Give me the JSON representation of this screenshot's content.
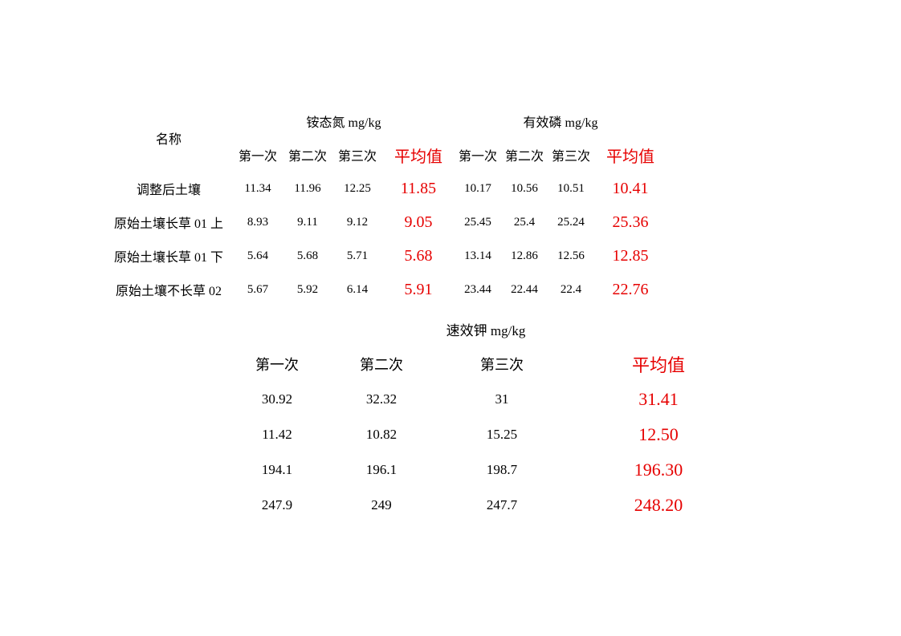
{
  "table1": {
    "name_header": "名称",
    "group_a": "铵态氮 mg/kg",
    "group_b": "有效磷 mg/kg",
    "sub1": "第一次",
    "sub2": "第二次",
    "sub3": "第三次",
    "avg_label": "平均值",
    "rows": [
      {
        "name": "调整后土壤",
        "a1": "11.34",
        "a2": "11.96",
        "a3": "12.25",
        "aavg": "11.85",
        "b1": "10.17",
        "b2": "10.56",
        "b3": "10.51",
        "bavg": "10.41"
      },
      {
        "name": "原始土壤长草 01 上",
        "a1": "8.93",
        "a2": "9.11",
        "a3": "9.12",
        "aavg": "9.05",
        "b1": "25.45",
        "b2": "25.4",
        "b3": "25.24",
        "bavg": "25.36"
      },
      {
        "name": "原始土壤长草 01 下",
        "a1": "5.64",
        "a2": "5.68",
        "a3": "5.71",
        "aavg": "5.68",
        "b1": "13.14",
        "b2": "12.86",
        "b3": "12.56",
        "bavg": "12.85"
      },
      {
        "name": "原始土壤不长草 02",
        "a1": "5.67",
        "a2": "5.92",
        "a3": "6.14",
        "aavg": "5.91",
        "b1": "23.44",
        "b2": "22.44",
        "b3": "22.4",
        "bavg": "22.76"
      }
    ]
  },
  "table2": {
    "group": "速效钾 mg/kg",
    "sub1": "第一次",
    "sub2": "第二次",
    "sub3": "第三次",
    "avg_label": "平均值",
    "rows": [
      {
        "c1": "30.92",
        "c2": "32.32",
        "c3": "31",
        "cavg": "31.41"
      },
      {
        "c1": "11.42",
        "c2": "10.82",
        "c3": "15.25",
        "cavg": "12.50"
      },
      {
        "c1": "194.1",
        "c2": "196.1",
        "c3": "198.7",
        "cavg": "196.30"
      },
      {
        "c1": "247.9",
        "c2": "249",
        "c3": "247.7",
        "cavg": "248.20"
      }
    ]
  },
  "colors": {
    "text": "#000000",
    "highlight": "#e60000",
    "background": "#ffffff"
  }
}
